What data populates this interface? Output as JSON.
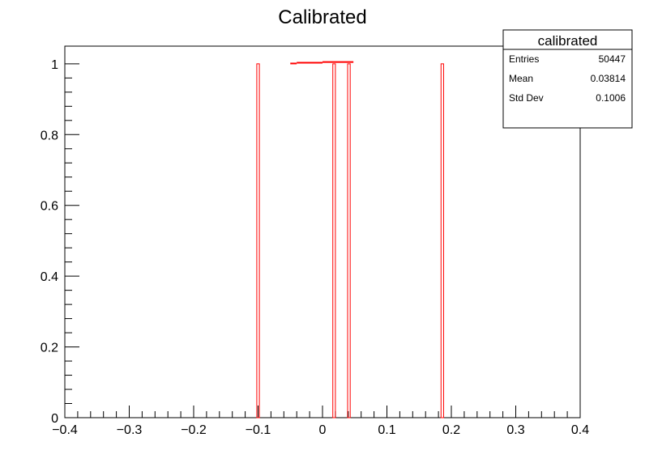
{
  "chart_data": {
    "type": "bar",
    "title": "Calibrated",
    "xlabel": "",
    "ylabel": "",
    "xlim": [
      -0.4,
      0.4
    ],
    "ylim": [
      0,
      1.05
    ],
    "x_ticks": [
      -0.4,
      -0.3,
      -0.2,
      -0.1,
      0,
      0.1,
      0.2,
      0.3,
      0.4
    ],
    "x_tick_labels": [
      "−0.4",
      "−0.3",
      "−0.2",
      "−0.1",
      "0",
      "0.1",
      "0.2",
      "0.3",
      "0.4"
    ],
    "y_ticks": [
      0,
      0.2,
      0.4,
      0.6,
      0.8,
      1
    ],
    "y_tick_labels": [
      "0",
      "0.2",
      "0.4",
      "0.6",
      "0.8",
      "1"
    ],
    "bin_width": 0.004,
    "bars": [
      {
        "x": -0.1,
        "value": 1
      },
      {
        "x": 0.018,
        "value": 1
      },
      {
        "x": 0.041,
        "value": 1
      },
      {
        "x": 0.186,
        "value": 1
      }
    ],
    "line_segments": [
      {
        "x": [
          -0.05,
          -0.04
        ],
        "y": [
          1.001,
          1.001
        ]
      },
      {
        "x": [
          -0.04,
          0.0
        ],
        "y": [
          1.003,
          1.003
        ]
      },
      {
        "x": [
          0.0,
          0.048
        ],
        "y": [
          1.005,
          1.005
        ]
      }
    ],
    "line_color": "#ff0000",
    "bar_color": "#ff0000",
    "grid": false,
    "legend": "none",
    "stats_box": {
      "placement": "top-right",
      "title": "calibrated",
      "rows": [
        {
          "label": "Entries",
          "value": "50447"
        },
        {
          "label": "Mean",
          "value": "0.03814"
        },
        {
          "label": "Std Dev",
          "value": "0.1006"
        }
      ]
    }
  }
}
